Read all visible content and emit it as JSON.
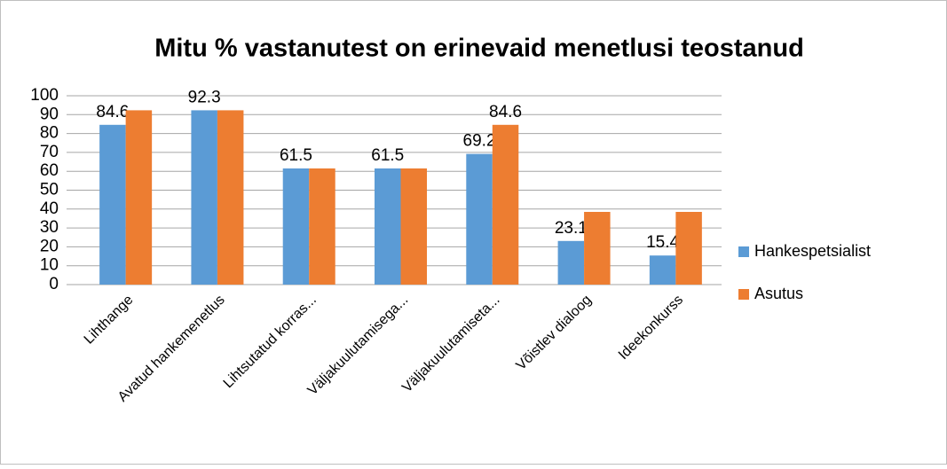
{
  "chart_data": {
    "type": "bar",
    "title": "Mitu % vastanutest on erinevaid menetlusi teostanud",
    "categories": [
      "Lihthange",
      "Avatud hankemenetlus",
      "Lihtsutatud korras...",
      "Väljakuulutamisega...",
      "Väljakuulutamiseta...",
      "Võistlev dialoog",
      "Ideekonkurss"
    ],
    "series": [
      {
        "name": "Hankespetsialist",
        "color": "#5b9bd5",
        "values": [
          84.6,
          92.3,
          61.5,
          61.5,
          69.2,
          23.1,
          15.4
        ],
        "show_labels": true
      },
      {
        "name": "Asutus",
        "color": "#ed7d31",
        "values": [
          92.3,
          92.3,
          61.5,
          61.5,
          84.6,
          38.5,
          38.5
        ],
        "value_labels": [
          null,
          null,
          null,
          null,
          "84.6",
          null,
          null
        ]
      }
    ],
    "ylim": [
      0,
      100
    ],
    "yticks": [
      0,
      10,
      20,
      30,
      40,
      50,
      60,
      70,
      80,
      90,
      100
    ],
    "grid": true,
    "legend": "right"
  }
}
